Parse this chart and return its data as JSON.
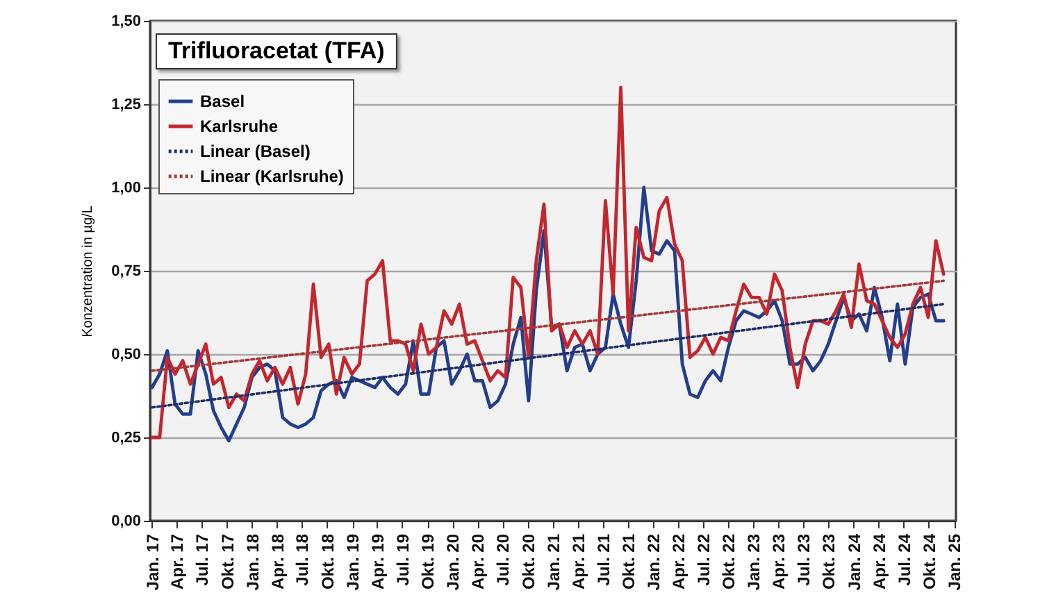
{
  "chart_data": {
    "type": "line",
    "title": "Trifluoracetat (TFA)",
    "ylabel": "Konzentration in µg/L",
    "x": [
      "2017-01-01",
      "2017-01-29",
      "2017-02-26",
      "2017-03-26",
      "2017-04-23",
      "2017-05-21",
      "2017-06-18",
      "2017-07-16",
      "2017-08-13",
      "2017-09-10",
      "2017-10-08",
      "2017-11-05",
      "2017-12-03",
      "2017-12-31",
      "2018-01-28",
      "2018-02-25",
      "2018-03-25",
      "2018-04-22",
      "2018-05-20",
      "2018-06-17",
      "2018-07-15",
      "2018-08-12",
      "2018-09-09",
      "2018-10-07",
      "2018-11-04",
      "2018-12-02",
      "2018-12-30",
      "2019-01-27",
      "2019-02-24",
      "2019-03-24",
      "2019-04-21",
      "2019-05-19",
      "2019-06-16",
      "2019-07-14",
      "2019-08-11",
      "2019-09-08",
      "2019-10-06",
      "2019-11-03",
      "2019-12-01",
      "2019-12-29",
      "2020-01-26",
      "2020-02-23",
      "2020-03-22",
      "2020-04-19",
      "2020-05-17",
      "2020-06-14",
      "2020-07-12",
      "2020-08-09",
      "2020-09-06",
      "2020-10-04",
      "2020-11-01",
      "2020-11-29",
      "2020-12-27",
      "2021-01-24",
      "2021-02-21",
      "2021-03-21",
      "2021-04-18",
      "2021-05-16",
      "2021-06-13",
      "2021-07-11",
      "2021-08-08",
      "2021-09-05",
      "2021-10-03",
      "2021-10-31",
      "2021-11-28",
      "2021-12-26",
      "2022-01-23",
      "2022-02-20",
      "2022-03-20",
      "2022-04-17",
      "2022-05-15",
      "2022-06-12",
      "2022-07-10",
      "2022-08-07",
      "2022-09-04",
      "2022-10-02",
      "2022-10-30",
      "2022-11-27",
      "2022-12-25",
      "2023-01-22",
      "2023-02-19",
      "2023-03-19",
      "2023-04-16",
      "2023-05-14",
      "2023-06-11",
      "2023-07-09",
      "2023-08-06",
      "2023-09-03",
      "2023-10-01",
      "2023-10-29",
      "2023-11-26",
      "2023-12-24",
      "2024-01-21",
      "2024-02-18",
      "2024-03-17",
      "2024-04-14",
      "2024-05-12",
      "2024-06-09",
      "2024-07-07",
      "2024-08-04",
      "2024-09-01",
      "2024-09-29",
      "2024-10-27",
      "2024-11-24"
    ],
    "series": [
      {
        "name": "Basel",
        "color": "#233e8b",
        "type": "line",
        "line_style": "solid",
        "values": [
          0.4,
          0.44,
          0.51,
          0.35,
          0.32,
          0.32,
          0.51,
          0.44,
          0.33,
          0.28,
          0.24,
          0.29,
          0.34,
          0.43,
          0.46,
          0.47,
          0.45,
          0.31,
          0.29,
          0.28,
          0.29,
          0.31,
          0.39,
          0.41,
          0.42,
          0.37,
          0.43,
          0.42,
          0.41,
          0.4,
          0.43,
          0.4,
          0.38,
          0.41,
          0.54,
          0.38,
          0.38,
          0.52,
          0.54,
          0.41,
          0.45,
          0.5,
          0.42,
          0.42,
          0.34,
          0.36,
          0.41,
          0.53,
          0.61,
          0.36,
          0.69,
          0.87,
          0.58,
          0.59,
          0.45,
          0.52,
          0.53,
          0.45,
          0.5,
          0.52,
          0.68,
          0.59,
          0.52,
          0.72,
          1.0,
          0.81,
          0.8,
          0.84,
          0.81,
          0.47,
          0.38,
          0.37,
          0.42,
          0.45,
          0.42,
          0.52,
          0.6,
          0.63,
          0.62,
          0.61,
          0.63,
          0.66,
          0.6,
          0.47,
          0.47,
          0.49,
          0.45,
          0.48,
          0.53,
          0.6,
          0.67,
          0.6,
          0.62,
          0.57,
          0.7,
          0.61,
          0.48,
          0.65,
          0.47,
          0.64,
          0.67,
          0.68,
          0.6,
          0.6
        ]
      },
      {
        "name": "Karlsruhe",
        "color": "#c4262e",
        "type": "line",
        "line_style": "solid",
        "values": [
          0.25,
          0.25,
          0.49,
          0.44,
          0.48,
          0.41,
          0.47,
          0.53,
          0.41,
          0.43,
          0.34,
          0.38,
          0.36,
          0.44,
          0.48,
          0.42,
          0.46,
          0.41,
          0.46,
          0.35,
          0.44,
          0.71,
          0.49,
          0.53,
          0.38,
          0.49,
          0.44,
          0.47,
          0.72,
          0.74,
          0.78,
          0.54,
          0.54,
          0.53,
          0.45,
          0.59,
          0.5,
          0.52,
          0.63,
          0.59,
          0.65,
          0.53,
          0.54,
          0.48,
          0.42,
          0.45,
          0.43,
          0.73,
          0.7,
          0.49,
          0.78,
          0.95,
          0.57,
          0.59,
          0.52,
          0.57,
          0.53,
          0.57,
          0.5,
          0.96,
          0.68,
          1.3,
          0.57,
          0.88,
          0.79,
          0.78,
          0.93,
          0.97,
          0.83,
          0.78,
          0.49,
          0.51,
          0.55,
          0.5,
          0.55,
          0.54,
          0.63,
          0.71,
          0.67,
          0.67,
          0.62,
          0.74,
          0.69,
          0.52,
          0.4,
          0.53,
          0.6,
          0.6,
          0.59,
          0.63,
          0.68,
          0.58,
          0.77,
          0.66,
          0.65,
          0.6,
          0.55,
          0.52,
          0.56,
          0.65,
          0.7,
          0.61,
          0.84,
          0.74
        ]
      },
      {
        "name": "Linear (Basel)",
        "color": "#1f2f6b",
        "type": "line",
        "line_style": "dotted",
        "x": [
          "2017-01-01",
          "2024-11-24"
        ],
        "values": [
          0.34,
          0.65
        ]
      },
      {
        "name": "Linear (Karlsruhe)",
        "color": "#a33a3a",
        "type": "line",
        "line_style": "dotted",
        "x": [
          "2017-01-01",
          "2024-11-24"
        ],
        "values": [
          0.45,
          0.72
        ]
      }
    ],
    "xlim": [
      "2016-12-25",
      "2025-01-08"
    ],
    "xticks": [
      {
        "value": "2017-01",
        "label": "Jan. 17"
      },
      {
        "value": "2017-04",
        "label": "Apr. 17"
      },
      {
        "value": "2017-07",
        "label": "Jul. 17"
      },
      {
        "value": "2017-10",
        "label": "Okt. 17"
      },
      {
        "value": "2018-01",
        "label": "Jan. 18"
      },
      {
        "value": "2018-04",
        "label": "Apr. 18"
      },
      {
        "value": "2018-07",
        "label": "Jul. 18"
      },
      {
        "value": "2018-10",
        "label": "Okt. 18"
      },
      {
        "value": "2019-01",
        "label": "Jan. 19"
      },
      {
        "value": "2019-04",
        "label": "Apr. 19"
      },
      {
        "value": "2019-07",
        "label": "Jul. 19"
      },
      {
        "value": "2019-10",
        "label": "Okt. 19"
      },
      {
        "value": "2020-01",
        "label": "Jan. 20"
      },
      {
        "value": "2020-04",
        "label": "Apr. 20"
      },
      {
        "value": "2020-07",
        "label": "Jul. 20"
      },
      {
        "value": "2020-10",
        "label": "Okt. 20"
      },
      {
        "value": "2021-01",
        "label": "Jan. 21"
      },
      {
        "value": "2021-04",
        "label": "Apr. 21"
      },
      {
        "value": "2021-07",
        "label": "Jul. 21"
      },
      {
        "value": "2021-10",
        "label": "Okt. 21"
      },
      {
        "value": "2022-01",
        "label": "Jan. 22"
      },
      {
        "value": "2022-04",
        "label": "Apr. 22"
      },
      {
        "value": "2022-07",
        "label": "Jul. 22"
      },
      {
        "value": "2022-10",
        "label": "Okt. 22"
      },
      {
        "value": "2023-01",
        "label": "Jan. 23"
      },
      {
        "value": "2023-04",
        "label": "Apr. 23"
      },
      {
        "value": "2023-07",
        "label": "Jul. 23"
      },
      {
        "value": "2023-10",
        "label": "Okt. 23"
      },
      {
        "value": "2024-01",
        "label": "Jan. 24"
      },
      {
        "value": "2024-04",
        "label": "Apr. 24"
      },
      {
        "value": "2024-07",
        "label": "Jul. 24"
      },
      {
        "value": "2024-10",
        "label": "Okt. 24"
      },
      {
        "value": "2025-01",
        "label": "Jan. 25"
      }
    ],
    "ylim": [
      0,
      1.5
    ],
    "yticks": [
      {
        "value": 0,
        "label": "0,00"
      },
      {
        "value": 0.25,
        "label": "0,25"
      },
      {
        "value": 0.5,
        "label": "0,50"
      },
      {
        "value": 0.75,
        "label": "0,75"
      },
      {
        "value": 1,
        "label": "1,00"
      },
      {
        "value": 1.25,
        "label": "1,25"
      },
      {
        "value": 1.5,
        "label": "1,50"
      }
    ],
    "grid": "y",
    "legend": "top left"
  }
}
